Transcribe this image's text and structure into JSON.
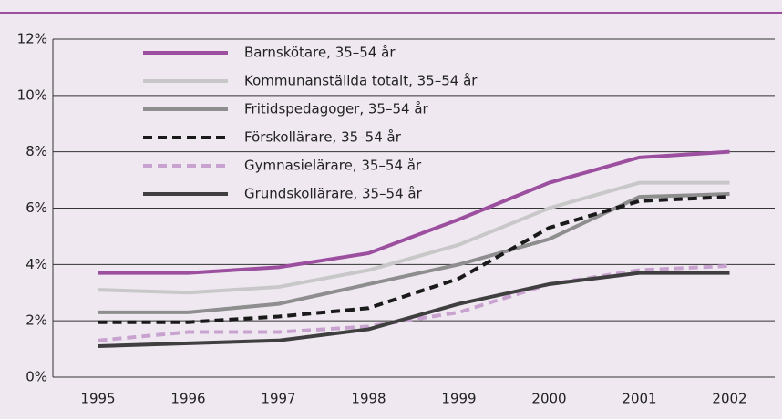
{
  "chart_data": {
    "type": "line",
    "categories": [
      "1995",
      "1996",
      "1997",
      "1998",
      "1999",
      "2000",
      "2001",
      "2002"
    ],
    "series": [
      {
        "name": "Barnskötare, 35–54 år",
        "color": "#9b4f9e",
        "dashed": false,
        "values": [
          3.7,
          3.7,
          3.9,
          4.4,
          5.6,
          6.9,
          7.8,
          8.0
        ]
      },
      {
        "name": "Kommunanställda totalt, 35–54 år",
        "color": "#c8c8c8",
        "dashed": false,
        "values": [
          3.1,
          3.0,
          3.2,
          3.8,
          4.7,
          6.0,
          6.9,
          6.9
        ]
      },
      {
        "name": "Fritidspedagoger, 35–54 år",
        "color": "#8e8e8e",
        "dashed": false,
        "values": [
          2.3,
          2.3,
          2.6,
          3.3,
          4.0,
          4.9,
          6.4,
          6.5
        ]
      },
      {
        "name": "Förskollärare, 35–54 år",
        "color": "#1a1a1a",
        "dashed": true,
        "values": [
          1.95,
          1.95,
          2.15,
          2.45,
          3.5,
          5.3,
          6.25,
          6.4
        ]
      },
      {
        "name": "Gymnasielärare, 35–54 år",
        "color": "#c9a3cf",
        "dashed": true,
        "values": [
          1.3,
          1.6,
          1.6,
          1.8,
          2.3,
          3.3,
          3.8,
          3.95
        ]
      },
      {
        "name": "Grundskollärare, 35–54 år",
        "color": "#3f3f3f",
        "dashed": false,
        "values": [
          1.1,
          1.2,
          1.3,
          1.7,
          2.6,
          3.3,
          3.7,
          3.7
        ]
      }
    ],
    "ylim": [
      0,
      12
    ],
    "yticks": [
      {
        "value": 0,
        "label": "0%"
      },
      {
        "value": 2,
        "label": "2%"
      },
      {
        "value": 4,
        "label": "4%"
      },
      {
        "value": 6,
        "label": "6%"
      },
      {
        "value": 8,
        "label": "8%"
      },
      {
        "value": 10,
        "label": "10%"
      },
      {
        "value": 12,
        "label": "12%"
      }
    ],
    "grid": true
  }
}
